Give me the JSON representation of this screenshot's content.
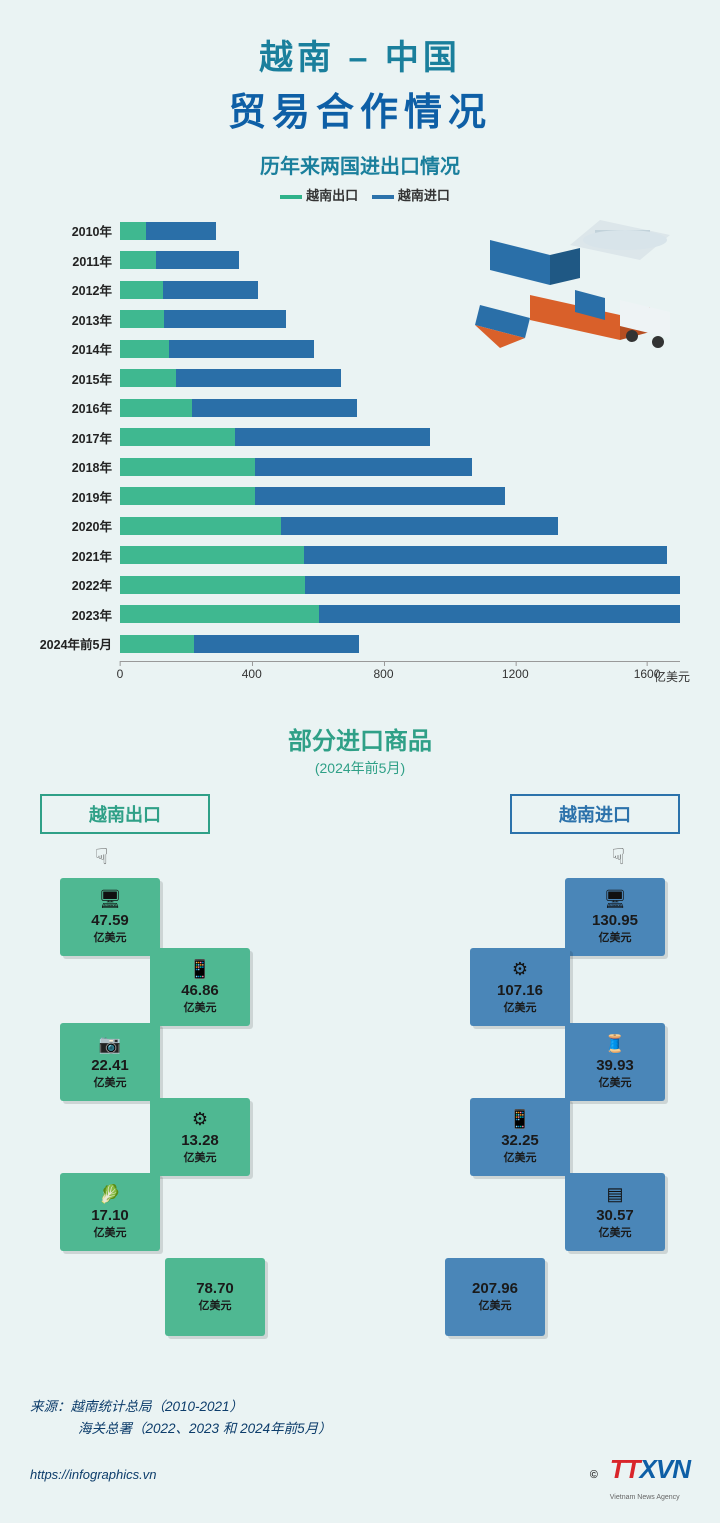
{
  "header": {
    "line1": "越南 – 中国",
    "line2": "贸易合作情况",
    "color1": "#1a7f9c",
    "color2": "#0e5fa6"
  },
  "chart": {
    "subtitle": "历年来两国进出口情况",
    "subtitle_color": "#1a7f9c",
    "legend": {
      "export": "越南出口",
      "export_color": "#2fb28a",
      "import": "越南进口",
      "import_color": "#2c72ab"
    },
    "axis": {
      "max": 1700,
      "ticks": [
        0,
        400,
        800,
        1200,
        1600
      ],
      "unit": "亿美元"
    },
    "rows": [
      {
        "label": "2010年",
        "export": 80,
        "import": 210
      },
      {
        "label": "2011年",
        "export": 110,
        "import": 250
      },
      {
        "label": "2012年",
        "export": 130,
        "import": 290
      },
      {
        "label": "2013年",
        "export": 135,
        "import": 370
      },
      {
        "label": "2014年",
        "export": 150,
        "import": 440
      },
      {
        "label": "2015年",
        "export": 170,
        "import": 500
      },
      {
        "label": "2016年",
        "export": 220,
        "import": 500
      },
      {
        "label": "2017年",
        "export": 350,
        "import": 590
      },
      {
        "label": "2018年",
        "export": 410,
        "import": 660
      },
      {
        "label": "2019年",
        "export": 410,
        "import": 760
      },
      {
        "label": "2020年",
        "export": 490,
        "import": 840
      },
      {
        "label": "2021年",
        "export": 560,
        "import": 1100
      },
      {
        "label": "2022年",
        "export": 580,
        "import": 1180
      },
      {
        "label": "2023年",
        "export": 610,
        "import": 1110
      },
      {
        "label": "2024年前5月",
        "export": 225,
        "import": 500
      }
    ],
    "bar_colors": {
      "export": "#3fb890",
      "import": "#2a6fa8"
    }
  },
  "section2": {
    "title": "部分进口商品",
    "subtitle": "(2024年前5月)",
    "title_color": "#2fa087",
    "unit": "亿美元",
    "export": {
      "label": "越南出口",
      "accent": "#2fa087",
      "tile_color": "#4fb892",
      "items": [
        {
          "icon": "computer",
          "value": "47.59"
        },
        {
          "icon": "phone",
          "value": "46.86"
        },
        {
          "icon": "camera",
          "value": "22.41"
        },
        {
          "icon": "gear",
          "value": "13.28"
        },
        {
          "icon": "veg",
          "value": "17.10"
        },
        {
          "icon": "sum",
          "value": "78.70"
        }
      ]
    },
    "import": {
      "label": "越南进口",
      "accent": "#2c72ab",
      "tile_color": "#4a86b8",
      "items": [
        {
          "icon": "computer",
          "value": "130.95"
        },
        {
          "icon": "gear",
          "value": "107.16"
        },
        {
          "icon": "fabric",
          "value": "39.93"
        },
        {
          "icon": "phone",
          "value": "32.25"
        },
        {
          "icon": "steel",
          "value": "30.57"
        },
        {
          "icon": "sum",
          "value": "207.96"
        }
      ]
    }
  },
  "footer": {
    "line1": "来源：越南统计总局（2010-2021）",
    "line2": "海关总署（2022、2023 和 2024年前5月）",
    "url": "https://infographics.vn",
    "copyright": "©",
    "logo": "TTXVN",
    "logo_sub": "Vietnam News Agency"
  }
}
